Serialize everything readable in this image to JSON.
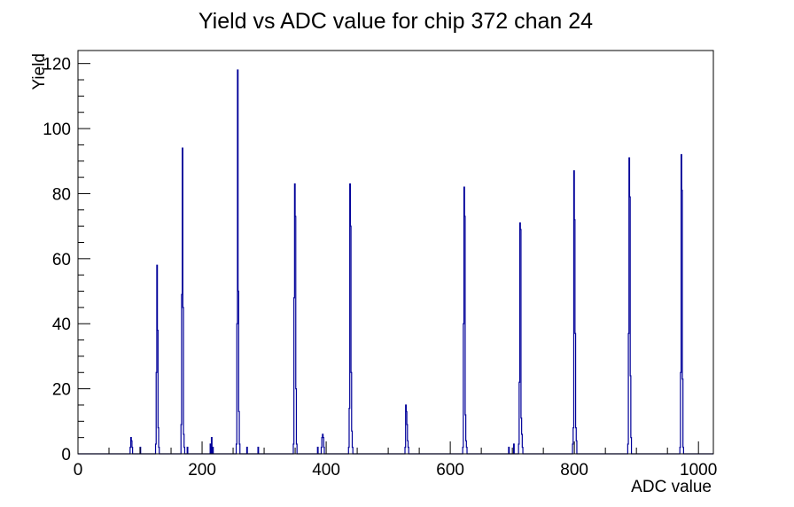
{
  "title": "Yield vs ADC value for chip 372 chan 24",
  "chart_data": {
    "type": "bar",
    "title": "Yield vs ADC value for chip 372 chan 24",
    "xlabel": "ADC value",
    "ylabel": "Yield",
    "xlim": [
      0,
      1024
    ],
    "ylim": [
      0,
      124
    ],
    "grid": false,
    "legend": "none",
    "line_color": "#000099",
    "frame_color": "#000000",
    "background_color": "#ffffff",
    "x_major_ticks": [
      0,
      200,
      400,
      600,
      800,
      1000
    ],
    "x_tick_labels": [
      "0",
      "200",
      "400",
      "600",
      "800",
      "1000"
    ],
    "x_minor_step": 50,
    "y_major_ticks": [
      0,
      20,
      40,
      60,
      80,
      100,
      120
    ],
    "y_tick_labels": [
      "0",
      "20",
      "40",
      "60",
      "80",
      "100",
      "120"
    ],
    "y_minor_step": 5,
    "bins_note": "histogram bins of width 1 ADC count; pairs are [adc_value, yield]; all unlisted bins are 0",
    "bins": [
      [
        84,
        2
      ],
      [
        85,
        5
      ],
      [
        86,
        4
      ],
      [
        87,
        2
      ],
      [
        100,
        2
      ],
      [
        125,
        3
      ],
      [
        126,
        25
      ],
      [
        127,
        58
      ],
      [
        128,
        38
      ],
      [
        129,
        8
      ],
      [
        130,
        2
      ],
      [
        166,
        9
      ],
      [
        167,
        49
      ],
      [
        168,
        94
      ],
      [
        169,
        45
      ],
      [
        170,
        6
      ],
      [
        171,
        2
      ],
      [
        176,
        2
      ],
      [
        213,
        3
      ],
      [
        215,
        5
      ],
      [
        217,
        2
      ],
      [
        255,
        3
      ],
      [
        256,
        40
      ],
      [
        257,
        118
      ],
      [
        258,
        50
      ],
      [
        259,
        13
      ],
      [
        260,
        3
      ],
      [
        272,
        2
      ],
      [
        290,
        2
      ],
      [
        347,
        3
      ],
      [
        348,
        48
      ],
      [
        349,
        83
      ],
      [
        350,
        73
      ],
      [
        351,
        20
      ],
      [
        352,
        3
      ],
      [
        386,
        2
      ],
      [
        392,
        2
      ],
      [
        393,
        5
      ],
      [
        394,
        6
      ],
      [
        395,
        5
      ],
      [
        396,
        2
      ],
      [
        436,
        2
      ],
      [
        437,
        14
      ],
      [
        438,
        83
      ],
      [
        439,
        70
      ],
      [
        440,
        25
      ],
      [
        441,
        7
      ],
      [
        442,
        2
      ],
      [
        527,
        2
      ],
      [
        528,
        15
      ],
      [
        529,
        13
      ],
      [
        530,
        9
      ],
      [
        531,
        4
      ],
      [
        532,
        2
      ],
      [
        620,
        2
      ],
      [
        621,
        40
      ],
      [
        622,
        82
      ],
      [
        623,
        73
      ],
      [
        624,
        12
      ],
      [
        625,
        4
      ],
      [
        626,
        2
      ],
      [
        694,
        2
      ],
      [
        702,
        3
      ],
      [
        710,
        3
      ],
      [
        711,
        22
      ],
      [
        712,
        71
      ],
      [
        713,
        69
      ],
      [
        714,
        11
      ],
      [
        715,
        6
      ],
      [
        716,
        2
      ],
      [
        797,
        3
      ],
      [
        798,
        8
      ],
      [
        799,
        87
      ],
      [
        800,
        72
      ],
      [
        801,
        37
      ],
      [
        802,
        8
      ],
      [
        803,
        4
      ],
      [
        886,
        3
      ],
      [
        887,
        37
      ],
      [
        888,
        91
      ],
      [
        889,
        79
      ],
      [
        890,
        24
      ],
      [
        891,
        5
      ],
      [
        970,
        2
      ],
      [
        971,
        25
      ],
      [
        972,
        92
      ],
      [
        973,
        81
      ],
      [
        974,
        23
      ],
      [
        975,
        2
      ]
    ]
  }
}
